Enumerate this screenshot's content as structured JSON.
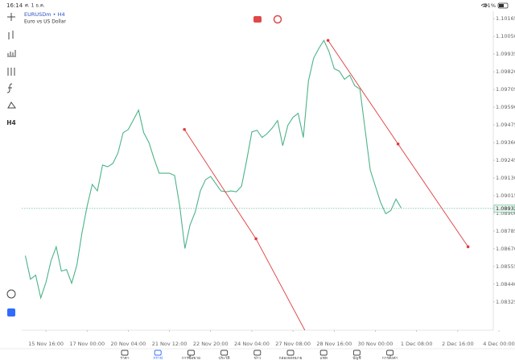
{
  "status_bar": {
    "time": "16:14",
    "date": "ศ. 1 ธ.ค.",
    "battery": "51%"
  },
  "header": {
    "symbol": "EURUSDm • H4",
    "description": "Euro vs US Dollar"
  },
  "toolbar": {
    "timeframe": "H4"
  },
  "chart_data": {
    "type": "line",
    "x": [
      -4,
      -3,
      -2,
      -1,
      0,
      1,
      2,
      3,
      4,
      5,
      6,
      7,
      8,
      9,
      10,
      11,
      12,
      13,
      14,
      15,
      16,
      17,
      18,
      19,
      20,
      21,
      22,
      23,
      24,
      25,
      26,
      27,
      28,
      29,
      30,
      31,
      32,
      33,
      34,
      35,
      36,
      37,
      38,
      39,
      40,
      41,
      42,
      43,
      44,
      45,
      46,
      47,
      48,
      49,
      50,
      51,
      52,
      53,
      54,
      55,
      56,
      57,
      58,
      59,
      60,
      61,
      62,
      63,
      64,
      65,
      66,
      67,
      68,
      69
    ],
    "series": [
      {
        "color": "#4cb387",
        "values": [
          1.08625,
          1.08472,
          1.08499,
          1.08351,
          1.08451,
          1.08593,
          1.08683,
          1.08525,
          1.08535,
          1.08446,
          1.08562,
          1.08772,
          1.08946,
          1.09088,
          1.09046,
          1.09214,
          1.09203,
          1.09224,
          1.09293,
          1.09424,
          1.09445,
          1.09508,
          1.09571,
          1.09424,
          1.09361,
          1.09256,
          1.09161,
          1.09161,
          1.09161,
          1.09146,
          1.08946,
          1.08672,
          1.08825,
          1.08909,
          1.09046,
          1.09119,
          1.0914,
          1.09093,
          1.09046,
          1.0904,
          1.09046,
          1.0904,
          1.09077,
          1.09245,
          1.09429,
          1.0944,
          1.09393,
          1.09419,
          1.09456,
          1.09503,
          1.0934,
          1.09472,
          1.09524,
          1.0955,
          1.09393,
          1.09761,
          1.09908,
          1.09971,
          1.10024,
          1.0995,
          1.0984,
          1.09824,
          1.09771,
          1.09798,
          1.09729,
          1.09708,
          1.09445,
          1.09182,
          1.09077,
          1.08972,
          1.08898,
          1.08919,
          1.08993,
          1.08935
        ]
      }
    ],
    "xlim": [
      -4.7,
      86.9
    ],
    "ylim": [
      1.08141,
      1.10213
    ],
    "xticks": [
      {
        "value": 0,
        "label": "15 Nov 16:00"
      },
      {
        "value": 8,
        "label": "17 Nov 00:00"
      },
      {
        "value": 16,
        "label": "20 Nov 04:00"
      },
      {
        "value": 24,
        "label": "21 Nov 12:00"
      },
      {
        "value": 32,
        "label": "22 Nov 20:00"
      },
      {
        "value": 40,
        "label": "24 Nov 04:00"
      },
      {
        "value": 48,
        "label": "27 Nov 08:00"
      },
      {
        "value": 56,
        "label": "28 Nov 16:00"
      },
      {
        "value": 64,
        "label": "30 Nov 00:00"
      },
      {
        "value": 72,
        "label": "1 Dec 08:00"
      },
      {
        "value": 80,
        "label": "2 Dec 16:00"
      },
      {
        "value": 88,
        "label": "4 Dec 00:00"
      }
    ],
    "yticks": [
      {
        "value": 1.10165,
        "label": "1.10165"
      },
      {
        "value": 1.1005,
        "label": "1.10050"
      },
      {
        "value": 1.09935,
        "label": "1.09935"
      },
      {
        "value": 1.0982,
        "label": "1.09820"
      },
      {
        "value": 1.09705,
        "label": "1.09705"
      },
      {
        "value": 1.0959,
        "label": "1.09590"
      },
      {
        "value": 1.09475,
        "label": "1.09475"
      },
      {
        "value": 1.0936,
        "label": "1.09360"
      },
      {
        "value": 1.09245,
        "label": "1.09245"
      },
      {
        "value": 1.0913,
        "label": "1.09130"
      },
      {
        "value": 1.09015,
        "label": "1.09015"
      },
      {
        "value": 1.089,
        "label": "1.08900"
      },
      {
        "value": 1.08785,
        "label": "1.08785"
      },
      {
        "value": 1.0867,
        "label": "1.08670"
      },
      {
        "value": 1.08555,
        "label": "1.08555"
      },
      {
        "value": 1.0844,
        "label": "1.08440"
      },
      {
        "value": 1.08325,
        "label": "1.08325"
      }
    ],
    "current_price": 1.08932,
    "drawings": [
      {
        "color": "#e03a3a",
        "x": [
          26.9,
          40.8,
          51.3
        ],
        "y": [
          1.09445,
          1.08735,
          1.08078
        ]
      },
      {
        "color": "#e03a3a",
        "x": [
          54.8,
          68.4,
          82.0
        ],
        "y": [
          1.10024,
          1.09351,
          1.08683
        ]
      }
    ]
  },
  "nav": {
    "active": 1,
    "active_color": "#2f6bff",
    "items": [
      "ราคา",
      "กราฟ",
      "การซื้อขาย",
      "ประวัติ",
      "ข่าว",
      "กล่องจดหมาย",
      "แชท",
      "บัญชี",
      "การตั้งค่า"
    ]
  }
}
